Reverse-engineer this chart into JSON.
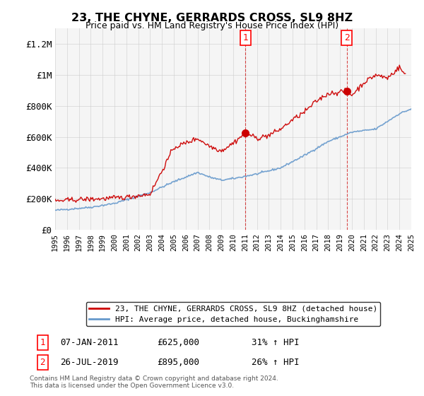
{
  "title": "23, THE CHYNE, GERRARDS CROSS, SL9 8HZ",
  "subtitle": "Price paid vs. HM Land Registry's House Price Index (HPI)",
  "ylabel_ticks": [
    "£0",
    "£200K",
    "£400K",
    "£600K",
    "£800K",
    "£1M",
    "£1.2M"
  ],
  "ytick_values": [
    0,
    200000,
    400000,
    600000,
    800000,
    1000000,
    1200000
  ],
  "ylim": [
    0,
    1300000
  ],
  "xlim_start": 1995,
  "xlim_end": 2025,
  "transaction1_x": 2011.03,
  "transaction1_y": 625000,
  "transaction2_x": 2019.57,
  "transaction2_y": 895000,
  "annotation1_date": "07-JAN-2011",
  "annotation1_price": "£625,000",
  "annotation1_pct": "31% ↑ HPI",
  "annotation2_date": "26-JUL-2019",
  "annotation2_price": "£895,000",
  "annotation2_pct": "26% ↑ HPI",
  "legend_line1": "23, THE CHYNE, GERRARDS CROSS, SL9 8HZ (detached house)",
  "legend_line2": "HPI: Average price, detached house, Buckinghamshire",
  "footer": "Contains HM Land Registry data © Crown copyright and database right 2024.\nThis data is licensed under the Open Government Licence v3.0.",
  "price_color": "#cc0000",
  "hpi_color": "#6699cc",
  "dashed_line_color": "#cc0000",
  "background_color": "#ffffff",
  "grid_color": "#cccccc"
}
